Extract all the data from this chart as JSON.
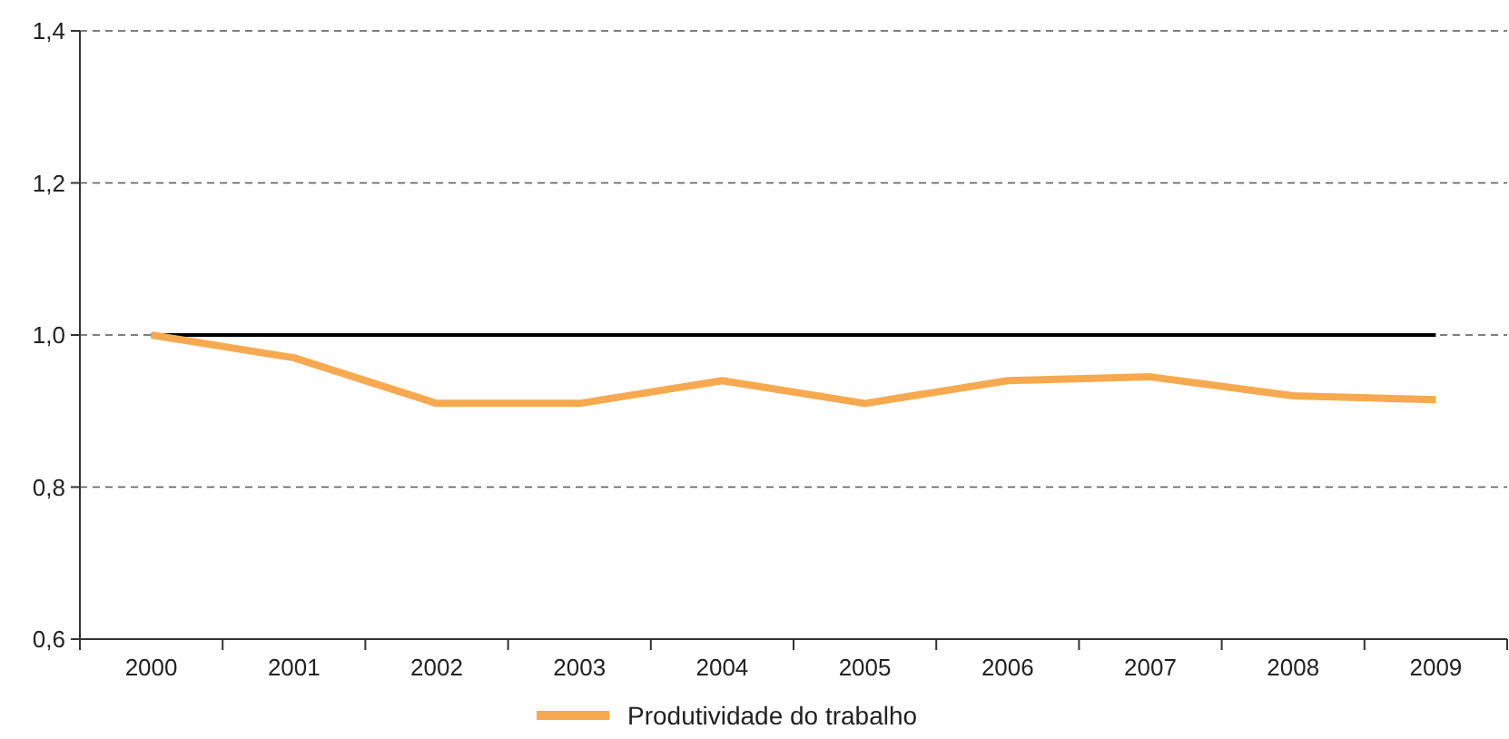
{
  "chart_data": {
    "type": "line",
    "categories": [
      "2000",
      "2001",
      "2002",
      "2003",
      "2004",
      "2005",
      "2006",
      "2007",
      "2008",
      "2009"
    ],
    "series": [
      {
        "color": "#000000",
        "values": [
          1.0,
          1.0,
          1.0,
          1.0,
          1.0,
          1.0,
          1.0,
          1.0,
          1.0,
          1.0
        ]
      },
      {
        "name": "Produtividade do trabalho",
        "color": "#f7a94f",
        "values": [
          1.0,
          0.97,
          0.91,
          0.91,
          0.94,
          0.91,
          0.94,
          0.945,
          0.92,
          0.915
        ]
      }
    ],
    "ylim": [
      0.6,
      1.4
    ],
    "yticks": [
      {
        "value": 0.6,
        "label": "0,6"
      },
      {
        "value": 0.8,
        "label": "0,8"
      },
      {
        "value": 1.0,
        "label": "1,0"
      },
      {
        "value": 1.2,
        "label": "1,2"
      },
      {
        "value": 1.4,
        "label": "1,4"
      }
    ],
    "grid": "y",
    "legend": "bottom",
    "marker": "none",
    "line_style": "solid"
  }
}
